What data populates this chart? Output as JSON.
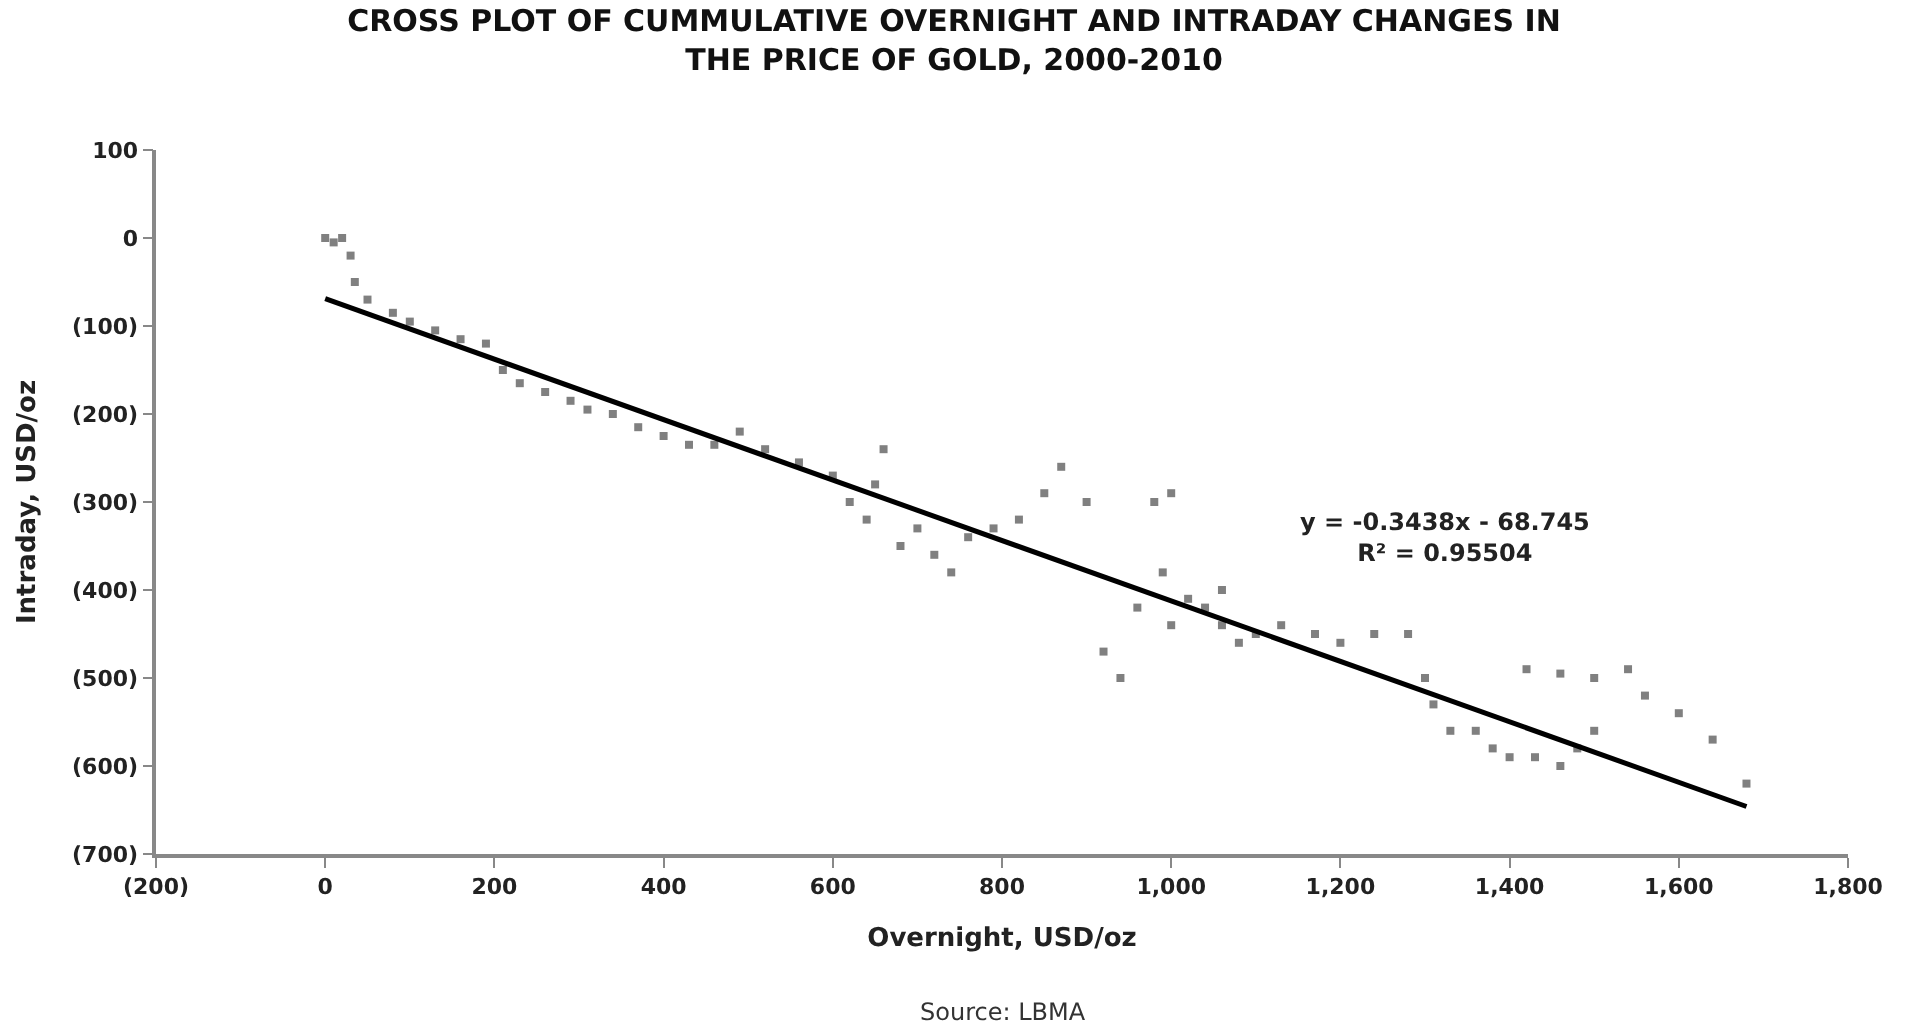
{
  "chart_data": {
    "type": "scatter",
    "title": "CROSS PLOT OF CUMMULATIVE OVERNIGHT AND INTRADAY CHANGES IN\nTHE PRICE OF GOLD, 2000-2010",
    "xlabel": "Overnight, USD/oz",
    "ylabel": "Intraday, USD/oz",
    "xlim": [
      -200,
      1800
    ],
    "ylim": [
      -700,
      100
    ],
    "xticks": [
      {
        "value": -200,
        "label": "(200)"
      },
      0,
      200,
      400,
      600,
      800,
      {
        "value": 1000,
        "label": "1,000"
      },
      {
        "value": 1200,
        "label": "1,200"
      },
      {
        "value": 1400,
        "label": "1,400"
      },
      {
        "value": 1600,
        "label": "1,600"
      },
      {
        "value": 1800,
        "label": "1,800"
      }
    ],
    "yticks": [
      {
        "value": -700,
        "label": "(700)"
      },
      {
        "value": -600,
        "label": "(600)"
      },
      {
        "value": -500,
        "label": "(500)"
      },
      {
        "value": -400,
        "label": "(400)"
      },
      {
        "value": -300,
        "label": "(300)"
      },
      {
        "value": -200,
        "label": "(200)"
      },
      {
        "value": -100,
        "label": "(100)"
      },
      0,
      100
    ],
    "series": [
      {
        "color": "#808080",
        "marker": "square",
        "x": [
          0,
          10,
          20,
          30,
          35,
          50,
          80,
          100,
          130,
          160,
          190,
          210,
          230,
          260,
          290,
          310,
          340,
          370,
          400,
          430,
          460,
          490,
          520,
          560,
          600,
          620,
          640,
          650,
          660,
          680,
          700,
          720,
          740,
          760,
          790,
          820,
          850,
          870,
          900,
          920,
          940,
          960,
          980,
          990,
          1000,
          1000,
          1020,
          1040,
          1060,
          1060,
          1080,
          1100,
          1130,
          1170,
          1200,
          1240,
          1280,
          1300,
          1310,
          1330,
          1360,
          1380,
          1400,
          1430,
          1460,
          1480,
          1500,
          1420,
          1460,
          1500,
          1540,
          1560,
          1600,
          1640,
          1680
        ],
        "values": [
          0,
          -5,
          0,
          -20,
          -50,
          -70,
          -85,
          -95,
          -105,
          -115,
          -120,
          -150,
          -165,
          -175,
          -185,
          -195,
          -200,
          -215,
          -225,
          -235,
          -235,
          -220,
          -240,
          -255,
          -270,
          -300,
          -320,
          -280,
          -240,
          -350,
          -330,
          -360,
          -380,
          -340,
          -330,
          -320,
          -290,
          -260,
          -300,
          -470,
          -500,
          -420,
          -300,
          -380,
          -440,
          -290,
          -410,
          -420,
          -440,
          -400,
          -460,
          -450,
          -440,
          -450,
          -460,
          -450,
          -450,
          -500,
          -530,
          -560,
          -560,
          -580,
          -590,
          -590,
          -600,
          -580,
          -560,
          -490,
          -495,
          -500,
          -490,
          -520,
          -540,
          -570,
          -620
        ]
      },
      {
        "type": "line",
        "color": "#000000",
        "marker": "none",
        "x": [
          0,
          1680
        ],
        "values": [
          -69,
          -646
        ]
      }
    ],
    "annotations": [
      "y = -0.3438x - 68.745\nR² = 0.95504",
      "Source: LBMA"
    ]
  }
}
